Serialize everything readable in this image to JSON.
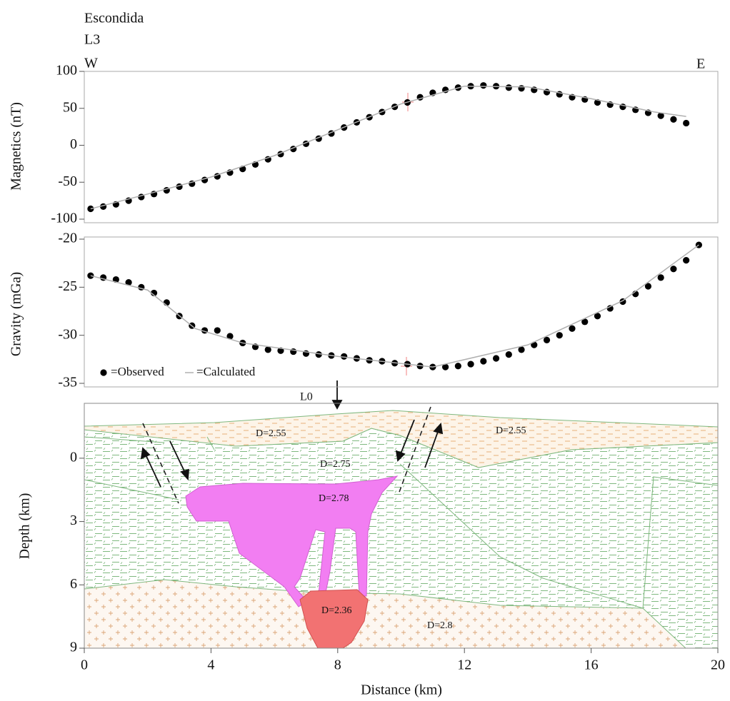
{
  "chart_data": [
    {
      "type": "scatter",
      "title": "Escondida",
      "subtitle": "L3",
      "annotations": [
        "W",
        "E"
      ],
      "ylabel": "Magnetics (nT)",
      "xlim": [
        0,
        20
      ],
      "ylim": [
        -100,
        100
      ],
      "yticks": [
        -100,
        -50,
        0,
        50,
        100
      ],
      "series": [
        {
          "mode": "markers",
          "color": "#000000",
          "x": [
            0.2,
            0.6,
            1.0,
            1.4,
            1.8,
            2.2,
            2.6,
            3.0,
            3.4,
            3.8,
            4.2,
            4.6,
            5.0,
            5.4,
            5.8,
            6.2,
            6.6,
            7.0,
            7.4,
            7.8,
            8.2,
            8.6,
            9.0,
            9.4,
            9.8,
            10.2,
            10.6,
            11.0,
            11.4,
            11.8,
            12.2,
            12.6,
            13.0,
            13.4,
            13.8,
            14.2,
            14.6,
            15.0,
            15.4,
            15.8,
            16.2,
            16.6,
            17.0,
            17.4,
            17.8,
            18.2,
            18.6,
            19.0
          ],
          "values": [
            -86,
            -83,
            -80,
            -75,
            -70,
            -66,
            -61,
            -56,
            -52,
            -47,
            -42,
            -37,
            -32,
            -26,
            -19,
            -12,
            -5,
            2,
            9,
            16,
            24,
            31,
            38,
            45,
            52,
            58,
            65,
            71,
            75,
            78,
            80,
            81,
            80,
            78,
            77,
            75,
            72,
            69,
            65,
            62,
            58,
            55,
            52,
            48,
            44,
            40,
            35,
            30
          ]
        },
        {
          "mode": "line",
          "color": "#b0b0b0",
          "x": [
            0.2,
            2,
            4,
            6,
            8,
            10,
            12,
            14,
            16,
            18,
            19
          ],
          "values": [
            -86,
            -66,
            -43,
            -14,
            21,
            56,
            80,
            79,
            63,
            45,
            39
          ]
        }
      ]
    },
    {
      "type": "scatter",
      "ylabel": "Gravity (mGa)",
      "xlim": [
        0,
        20
      ],
      "ylim": [
        -35,
        -20
      ],
      "yticks": [
        -35,
        -30,
        -25,
        -20
      ],
      "legend": "lower left",
      "series": [
        {
          "name": "=Observed",
          "mode": "markers",
          "color": "#000000",
          "x": [
            0.2,
            0.6,
            1.0,
            1.4,
            1.8,
            2.2,
            2.6,
            3.0,
            3.4,
            3.8,
            4.2,
            4.6,
            5.0,
            5.4,
            5.8,
            6.2,
            6.6,
            7.0,
            7.4,
            7.8,
            8.2,
            8.6,
            9.0,
            9.4,
            9.8,
            10.2,
            10.6,
            11.0,
            11.4,
            11.8,
            12.2,
            12.6,
            13.0,
            13.4,
            13.8,
            14.2,
            14.6,
            15.0,
            15.4,
            15.8,
            16.2,
            16.6,
            17.0,
            17.4,
            17.8,
            18.2,
            18.6,
            19.0,
            19.4
          ],
          "values": [
            -23.8,
            -24.0,
            -24.2,
            -24.5,
            -25.0,
            -25.6,
            -26.6,
            -28.0,
            -29.0,
            -29.5,
            -29.5,
            -30.1,
            -30.8,
            -31.2,
            -31.5,
            -31.6,
            -31.7,
            -31.9,
            -32.0,
            -32.1,
            -32.2,
            -32.4,
            -32.6,
            -32.7,
            -32.9,
            -33.0,
            -33.2,
            -33.3,
            -33.3,
            -33.2,
            -33.0,
            -32.7,
            -32.4,
            -32.0,
            -31.5,
            -31.0,
            -30.5,
            -30.0,
            -29.3,
            -28.6,
            -28.0,
            -27.2,
            -26.5,
            -25.7,
            -24.9,
            -24.0,
            -23.1,
            -22.2,
            -20.6
          ]
        },
        {
          "name": "=Calculated",
          "mode": "line",
          "color": "#b0b0b0",
          "x": [
            0.2,
            2,
            3.5,
            5,
            8,
            11,
            14,
            17,
            19.4
          ],
          "values": [
            -23.8,
            -25.3,
            -29.3,
            -30.8,
            -32.2,
            -33.3,
            -31,
            -26.4,
            -20.6
          ]
        }
      ]
    },
    {
      "type": "section",
      "ylabel": "Depth (km)",
      "xlabel": "Distance (km)",
      "xlim": [
        0,
        20
      ],
      "xticks": [
        0,
        4,
        8,
        12,
        16,
        20
      ],
      "ylim": [
        -2.6,
        9
      ],
      "y_inverted": true,
      "yticks": [
        0,
        3,
        6,
        9
      ],
      "annotations": [
        "L0",
        "D=2.55",
        "D=2.55",
        "D=2.75",
        "D=2.78",
        "D=2.36",
        "D=2.8"
      ]
    }
  ]
}
